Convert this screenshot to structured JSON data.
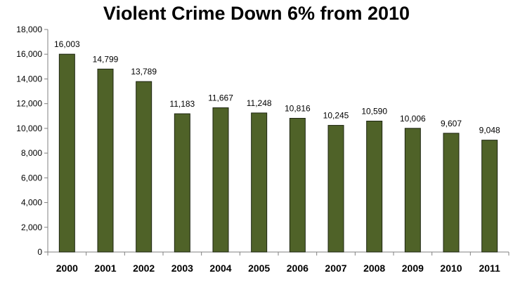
{
  "chart_data": {
    "type": "bar",
    "title": "Violent Crime Down 6% from 2010",
    "categories": [
      "2000",
      "2001",
      "2002",
      "2003",
      "2004",
      "2005",
      "2006",
      "2007",
      "2008",
      "2009",
      "2010",
      "2011"
    ],
    "values": [
      16003,
      14799,
      13789,
      11183,
      11667,
      11248,
      10816,
      10245,
      10590,
      10006,
      9607,
      9048
    ],
    "data_labels": [
      "16,003",
      "14,799",
      "13,789",
      "11,183",
      "11,667",
      "11,248",
      "10,816",
      "10,245",
      "10,590",
      "10,006",
      "9,607",
      "9,048"
    ],
    "y_ticks": [
      0,
      2000,
      4000,
      6000,
      8000,
      10000,
      12000,
      14000,
      16000,
      18000
    ],
    "y_tick_labels": [
      "0",
      "2,000",
      "4,000",
      "6,000",
      "8,000",
      "10,000",
      "12,000",
      "14,000",
      "16,000",
      "18,000"
    ],
    "ylim": [
      0,
      18000
    ],
    "grid": false,
    "legend": "none",
    "colors": {
      "bar_fill": "#4f6228",
      "bar_stroke": "#1c2410",
      "axis": "#808080"
    }
  }
}
